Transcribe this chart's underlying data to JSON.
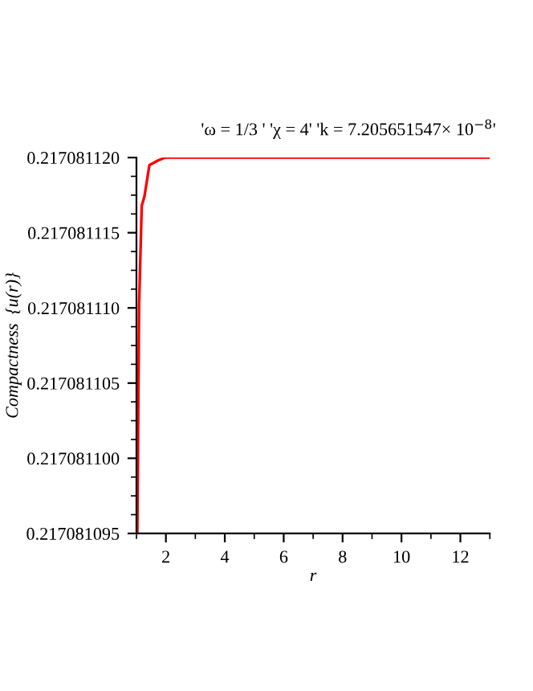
{
  "chart_data": {
    "type": "line",
    "title": "'ω = 1/3 ' 'χ = 4' 'k = 7.205651547× 10$^{−8}$'",
    "xlabel": "r",
    "ylabel": "Compactness  {u(r)}",
    "series": [
      {
        "color": "#ff0000",
        "x": [
          1.03,
          1.09,
          1.18,
          1.27,
          1.44,
          1.73,
          1.98,
          4,
          8,
          13
        ],
        "values": [
          0.217081095,
          0.2170811102,
          0.2170811168,
          0.2170811174,
          0.2170811195,
          0.2170811198,
          0.21708112,
          0.21708112,
          0.21708112,
          0.21708112
        ]
      }
    ],
    "xlim": [
      1,
      13
    ],
    "xticks": [
      2,
      4,
      6,
      8,
      10,
      12
    ],
    "ylim": [
      0.217081095,
      0.21708112
    ],
    "yticks": [
      {
        "value": 0.217081095,
        "label": "0.217081095"
      },
      {
        "value": 0.2170811,
        "label": "0.217081100"
      },
      {
        "value": 0.217081105,
        "label": "0.217081105"
      },
      {
        "value": 0.21708111,
        "label": "0.217081110"
      },
      {
        "value": 0.217081115,
        "label": "0.217081115"
      },
      {
        "value": 0.21708112,
        "label": "0.217081120"
      }
    ],
    "grid": false,
    "legend": false,
    "marker": "none",
    "line_style": "solid"
  }
}
